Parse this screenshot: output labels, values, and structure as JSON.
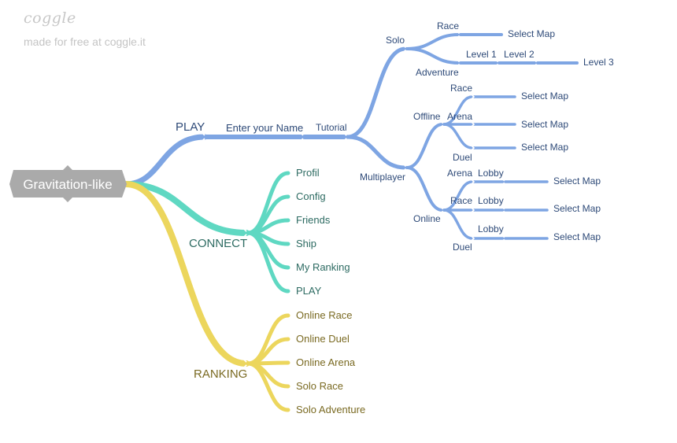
{
  "watermark": {
    "logo": "coggle",
    "credit": "made for free at coggle.it"
  },
  "colors": {
    "play": "#7ea5e3",
    "connect": "#5fd8c2",
    "ranking": "#ecd65d",
    "root_bg": "#aaaaaa"
  },
  "root": {
    "label": "Gravitation-like"
  },
  "play": {
    "label": "PLAY",
    "enter_name": "Enter your Name",
    "tutorial": "Tutorial",
    "solo": {
      "label": "Solo",
      "race": {
        "label": "Race",
        "select": "Select Map"
      },
      "adventure": {
        "label": "Adventure",
        "levels": [
          "Level 1",
          "Level 2",
          "Level 3"
        ]
      }
    },
    "multiplayer": {
      "label": "Multiplayer",
      "offline": {
        "label": "Offline",
        "race": "Race",
        "arena": "Arena",
        "duel": "Duel",
        "select": [
          "Select Map",
          "Select Map",
          "Select Map"
        ]
      },
      "online": {
        "label": "Online",
        "arena": "Arena",
        "race": "Race",
        "duel": "Duel",
        "lobby": [
          "Lobby",
          "Lobby",
          "Lobby"
        ],
        "select": [
          "Select Map",
          "Select Map",
          "Select Map"
        ]
      }
    }
  },
  "connect": {
    "label": "CONNECT",
    "items": [
      "Profil",
      "Config",
      "Friends",
      "Ship",
      "My Ranking",
      "PLAY"
    ]
  },
  "ranking": {
    "label": "RANKING",
    "items": [
      "Online Race",
      "Online Duel",
      "Online Arena",
      "Solo Race",
      "Solo Adventure"
    ]
  }
}
